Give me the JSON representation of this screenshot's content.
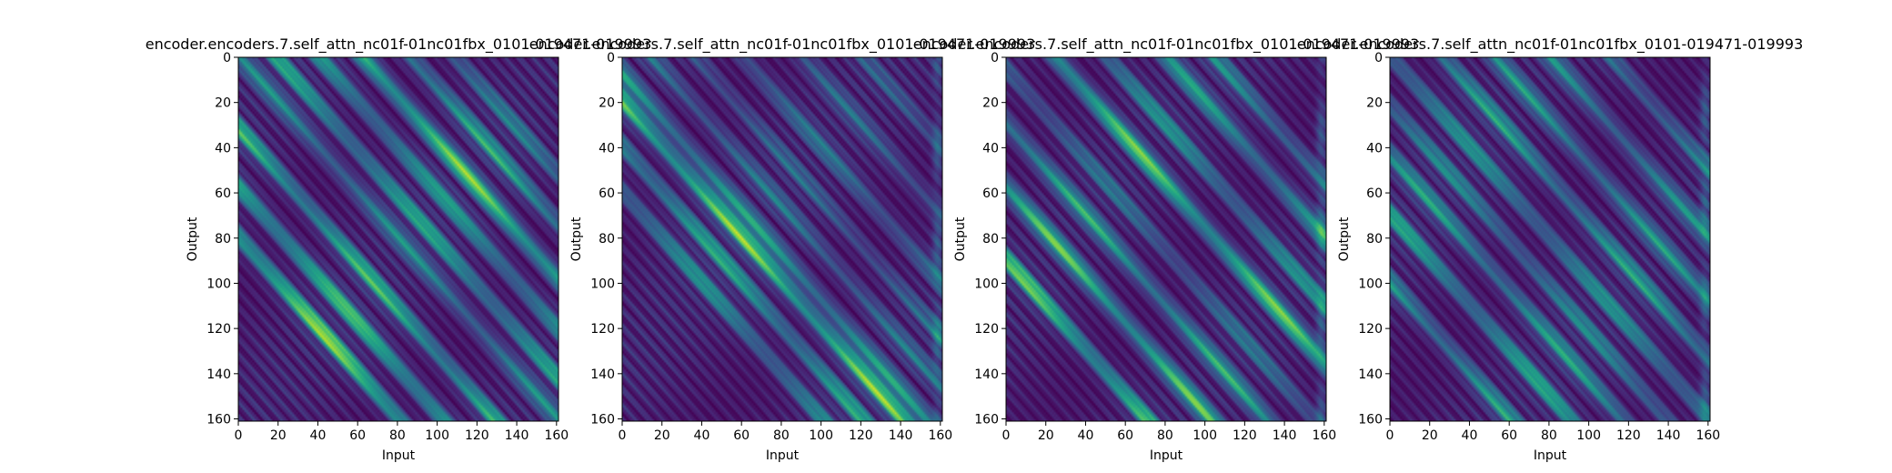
{
  "figure": {
    "background": "#ffffff",
    "colormap": "viridis"
  },
  "chart_data": [
    {
      "type": "heatmap",
      "title": "encoder.encoders.7.self_attn_nc01f-01nc01fbx_0101-019471-019993",
      "xlabel": "Input",
      "ylabel": "Output",
      "xlim": [
        0,
        161
      ],
      "ylim": [
        161,
        0
      ],
      "xticks": [
        "0",
        "20",
        "40",
        "60",
        "80",
        "100",
        "120",
        "140",
        "160"
      ],
      "yticks": [
        "0",
        "20",
        "40",
        "60",
        "80",
        "100",
        "120",
        "140",
        "160"
      ],
      "pattern": {
        "description": "bright diagonal stripes at constant offsets (input - output)",
        "stripe_offsets": [
          -80,
          -58,
          -32,
          0,
          18,
          40,
          62,
          86,
          108
        ],
        "stripe_strengths": [
          0.9,
          0.75,
          0.7,
          0.45,
          0.6,
          0.55,
          0.85,
          0.6,
          0.4
        ],
        "edge_column_bright": false
      }
    },
    {
      "type": "heatmap",
      "title": "encoder.encoders.7.self_attn_nc01f-01nc01fbx_0101-019471-019993",
      "xlabel": "Input",
      "ylabel": "Output",
      "xlim": [
        0,
        161
      ],
      "ylim": [
        161,
        0
      ],
      "xticks": [
        "0",
        "20",
        "40",
        "60",
        "80",
        "100",
        "120",
        "140",
        "160"
      ],
      "yticks": [
        "0",
        "20",
        "40",
        "60",
        "80",
        "100",
        "120",
        "140",
        "160"
      ],
      "pattern": {
        "description": "bright main band near offset -20, darker region above diagonal",
        "stripe_offsets": [
          -60,
          -40,
          -20,
          -8,
          14,
          36,
          60,
          90,
          120
        ],
        "stripe_strengths": [
          0.5,
          0.6,
          0.85,
          0.55,
          0.35,
          0.3,
          0.35,
          0.3,
          0.25
        ],
        "edge_column_bright": true
      }
    },
    {
      "type": "heatmap",
      "title": "encoder.encoders.7.self_attn_nc01f-01nc01fbx_0101-019471-019993",
      "xlabel": "Input",
      "ylabel": "Output",
      "xlim": [
        0,
        161
      ],
      "ylim": [
        161,
        0
      ],
      "xticks": [
        "0",
        "20",
        "40",
        "60",
        "80",
        "100",
        "120",
        "140",
        "160"
      ],
      "yticks": [
        "0",
        "20",
        "40",
        "60",
        "80",
        "100",
        "120",
        "140",
        "160"
      ],
      "pattern": {
        "description": "several strong diagonal stripes, bright right edge",
        "stripe_offsets": [
          -90,
          -58,
          -30,
          -6,
          24,
          50,
          80,
          104
        ],
        "stripe_strengths": [
          0.8,
          0.75,
          0.6,
          0.35,
          0.8,
          0.5,
          0.55,
          0.45
        ],
        "edge_column_bright": true
      }
    },
    {
      "type": "heatmap",
      "title": "encoder.encoders.7.self_attn_nc01f-01nc01fbx_0101-019471-019993",
      "xlabel": "Input",
      "ylabel": "Output",
      "xlim": [
        0,
        161
      ],
      "ylim": [
        161,
        0
      ],
      "xticks": [
        "0",
        "20",
        "40",
        "60",
        "80",
        "100",
        "120",
        "140",
        "160"
      ],
      "yticks": [
        "0",
        "20",
        "40",
        "60",
        "80",
        "100",
        "120",
        "140",
        "160"
      ],
      "pattern": {
        "description": "thin line on main diagonal, moderate parallel bands",
        "stripe_offsets": [
          -100,
          -70,
          -44,
          -22,
          0,
          26,
          52,
          80,
          110
        ],
        "stripe_strengths": [
          0.55,
          0.6,
          0.55,
          0.45,
          0.5,
          0.55,
          0.5,
          0.45,
          0.4
        ],
        "edge_column_bright": true
      }
    }
  ]
}
